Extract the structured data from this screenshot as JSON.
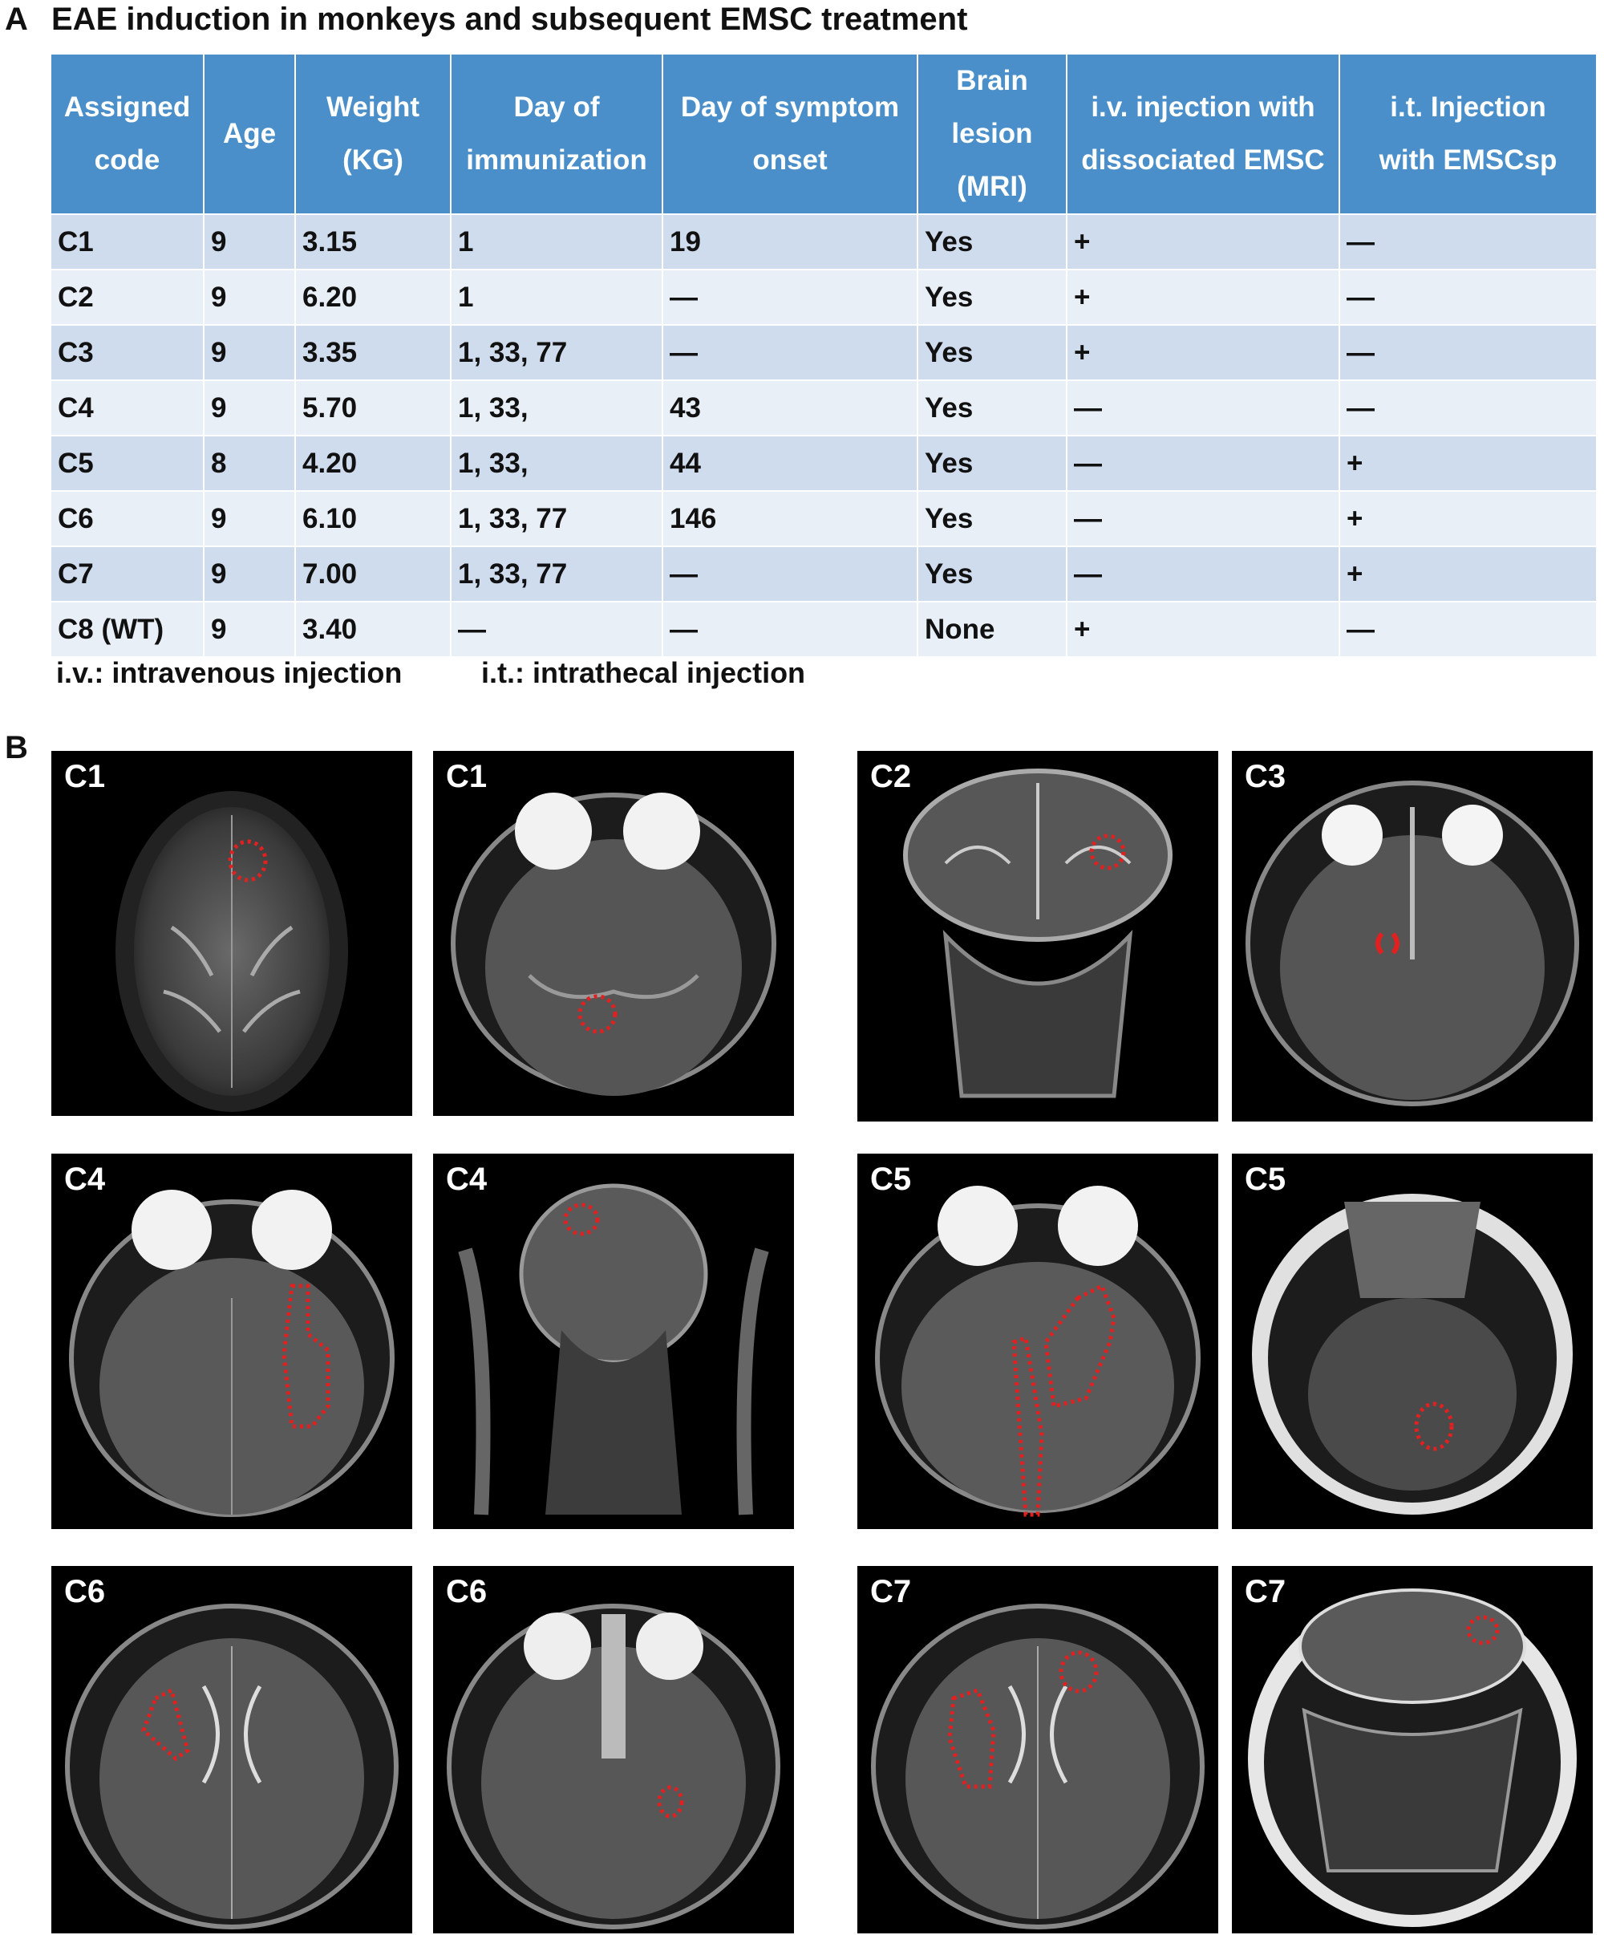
{
  "panel_a": {
    "letter": "A",
    "title": "EAE induction in monkeys and subsequent EMSC treatment",
    "headers": [
      [
        "Assigned",
        "code"
      ],
      [
        "Age"
      ],
      [
        "Weight",
        "(KG)"
      ],
      [
        "Day of",
        "immunization"
      ],
      [
        "Day of symptom",
        "onset"
      ],
      [
        "Brain",
        "lesion",
        "(MRI)"
      ],
      [
        "i.v. injection with",
        "dissociated EMSC"
      ],
      [
        "i.t.  Injection",
        "with EMSCsp"
      ]
    ],
    "rows": [
      [
        "C1",
        "9",
        "3.15",
        "1",
        "19",
        "Yes",
        "+",
        "—"
      ],
      [
        "C2",
        "9",
        "6.20",
        "1",
        "—",
        "Yes",
        "+",
        "—"
      ],
      [
        "C3",
        "9",
        "3.35",
        "1, 33, 77",
        "—",
        "Yes",
        "+",
        "—"
      ],
      [
        "C4",
        "9",
        "5.70",
        "1, 33,",
        "43",
        "Yes",
        "—",
        "—"
      ],
      [
        "C5",
        "8",
        "4.20",
        "1, 33,",
        "44",
        "Yes",
        "—",
        "+"
      ],
      [
        "C6",
        "9",
        "6.10",
        "1, 33, 77",
        "146",
        "Yes",
        "—",
        "+"
      ],
      [
        "C7",
        "9",
        "7.00",
        "1, 33, 77",
        "—",
        "Yes",
        "—",
        "+"
      ],
      [
        "C8 (WT)",
        "9",
        "3.40",
        "—",
        "—",
        "None",
        "+",
        "—"
      ]
    ],
    "footnote_iv": "i.v.: intravenous injection",
    "footnote_it": "i.t.: intrathecal injection"
  },
  "panel_b": {
    "letter": "B",
    "images": [
      {
        "label": "C1",
        "view": "axial-top",
        "lesion_color": "#e32020"
      },
      {
        "label": "C1",
        "view": "axial-eyes"
      },
      {
        "label": "C2",
        "view": "coronal"
      },
      {
        "label": "C3",
        "view": "axial-eyes-bright"
      },
      {
        "label": "C4",
        "view": "axial-eyes"
      },
      {
        "label": "C4",
        "view": "coronal"
      },
      {
        "label": "C5",
        "view": "axial-eyes"
      },
      {
        "label": "C5",
        "view": "axial-low"
      },
      {
        "label": "C6",
        "view": "axial-mid"
      },
      {
        "label": "C6",
        "view": "axial-eyes-bright"
      },
      {
        "label": "C7",
        "view": "axial-mid"
      },
      {
        "label": "C7",
        "view": "coronal-wide"
      }
    ]
  }
}
